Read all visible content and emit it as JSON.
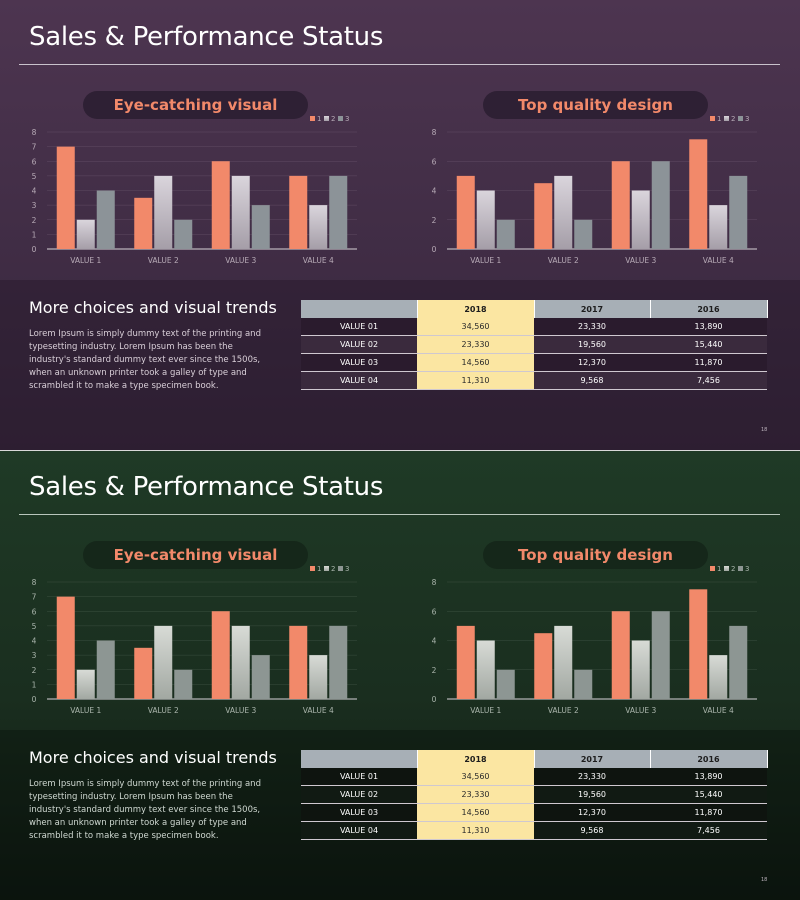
{
  "slides": [
    {
      "theme": "purple",
      "title": "Sales & Performance Status",
      "left_pill": "Eye-catching visual",
      "right_pill": "Top quality design",
      "sub_heading": "More choices and visual trends",
      "body": "Lorem Ipsum is simply dummy text of the printing and typesetting industry. Lorem Ipsum has been the industry's standard dummy text ever since the 1500s, when an unknown printer took a galley of type and scrambled it to make a type specimen book.",
      "page_number": "18"
    },
    {
      "theme": "green",
      "title": "Sales & Performance Status",
      "left_pill": "Eye-catching visual",
      "right_pill": "Top quality design",
      "sub_heading": "More choices and visual trends",
      "body": "Lorem Ipsum is simply dummy text of the printing and typesetting industry. Lorem Ipsum has been the industry's standard dummy text ever since the 1500s, when an unknown printer took a galley of type and scrambled it to make a type specimen book.",
      "page_number": "18"
    }
  ],
  "chart_data": [
    {
      "type": "bar",
      "title": "Eye-catching visual",
      "categories": [
        "VALUE 1",
        "VALUE 2",
        "VALUE 3",
        "VALUE 4"
      ],
      "series": [
        {
          "name": "1",
          "values": [
            7,
            3.5,
            6,
            5
          ]
        },
        {
          "name": "2",
          "values": [
            2,
            5,
            5,
            3
          ]
        },
        {
          "name": "3",
          "values": [
            4,
            2,
            3,
            5
          ]
        }
      ],
      "ylim": [
        0,
        8
      ],
      "yticks": [
        "0",
        "1",
        "2",
        "3",
        "4",
        "5",
        "6",
        "7",
        "8"
      ],
      "legend": "top-right"
    },
    {
      "type": "bar",
      "title": "Top quality design",
      "categories": [
        "VALUE 1",
        "VALUE 2",
        "VALUE 3",
        "VALUE 4"
      ],
      "series": [
        {
          "name": "1",
          "values": [
            5,
            4.5,
            6,
            7.5
          ]
        },
        {
          "name": "2",
          "values": [
            4,
            5,
            4,
            3
          ]
        },
        {
          "name": "3",
          "values": [
            2,
            2,
            6,
            5
          ]
        }
      ],
      "ylim": [
        0,
        8
      ],
      "yticks": [
        "0",
        "2",
        "4",
        "6",
        "8"
      ],
      "legend": "top-right"
    }
  ],
  "table": {
    "headers": [
      "",
      "2018",
      "2017",
      "2016"
    ],
    "rows": [
      [
        "VALUE 01",
        "34,560",
        "23,330",
        "13,890"
      ],
      [
        "VALUE 02",
        "23,330",
        "19,560",
        "15,440"
      ],
      [
        "VALUE 03",
        "14,560",
        "12,370",
        "11,870"
      ],
      [
        "VALUE 04",
        "11,310",
        "9,568",
        "7,456"
      ]
    ]
  },
  "colors": {
    "series1": "#f2896a",
    "series2_purple_top": "#dad5dc",
    "series2_purple_bottom": "#a59ea8",
    "series3_purple": "#8c9398",
    "series2_green_top": "#d8dbd6",
    "series2_green_bottom": "#a2a8a2",
    "series3_green": "#8d9693",
    "accent_pill_text": "#f2896a",
    "highlight_column": "#fbe6a2"
  }
}
